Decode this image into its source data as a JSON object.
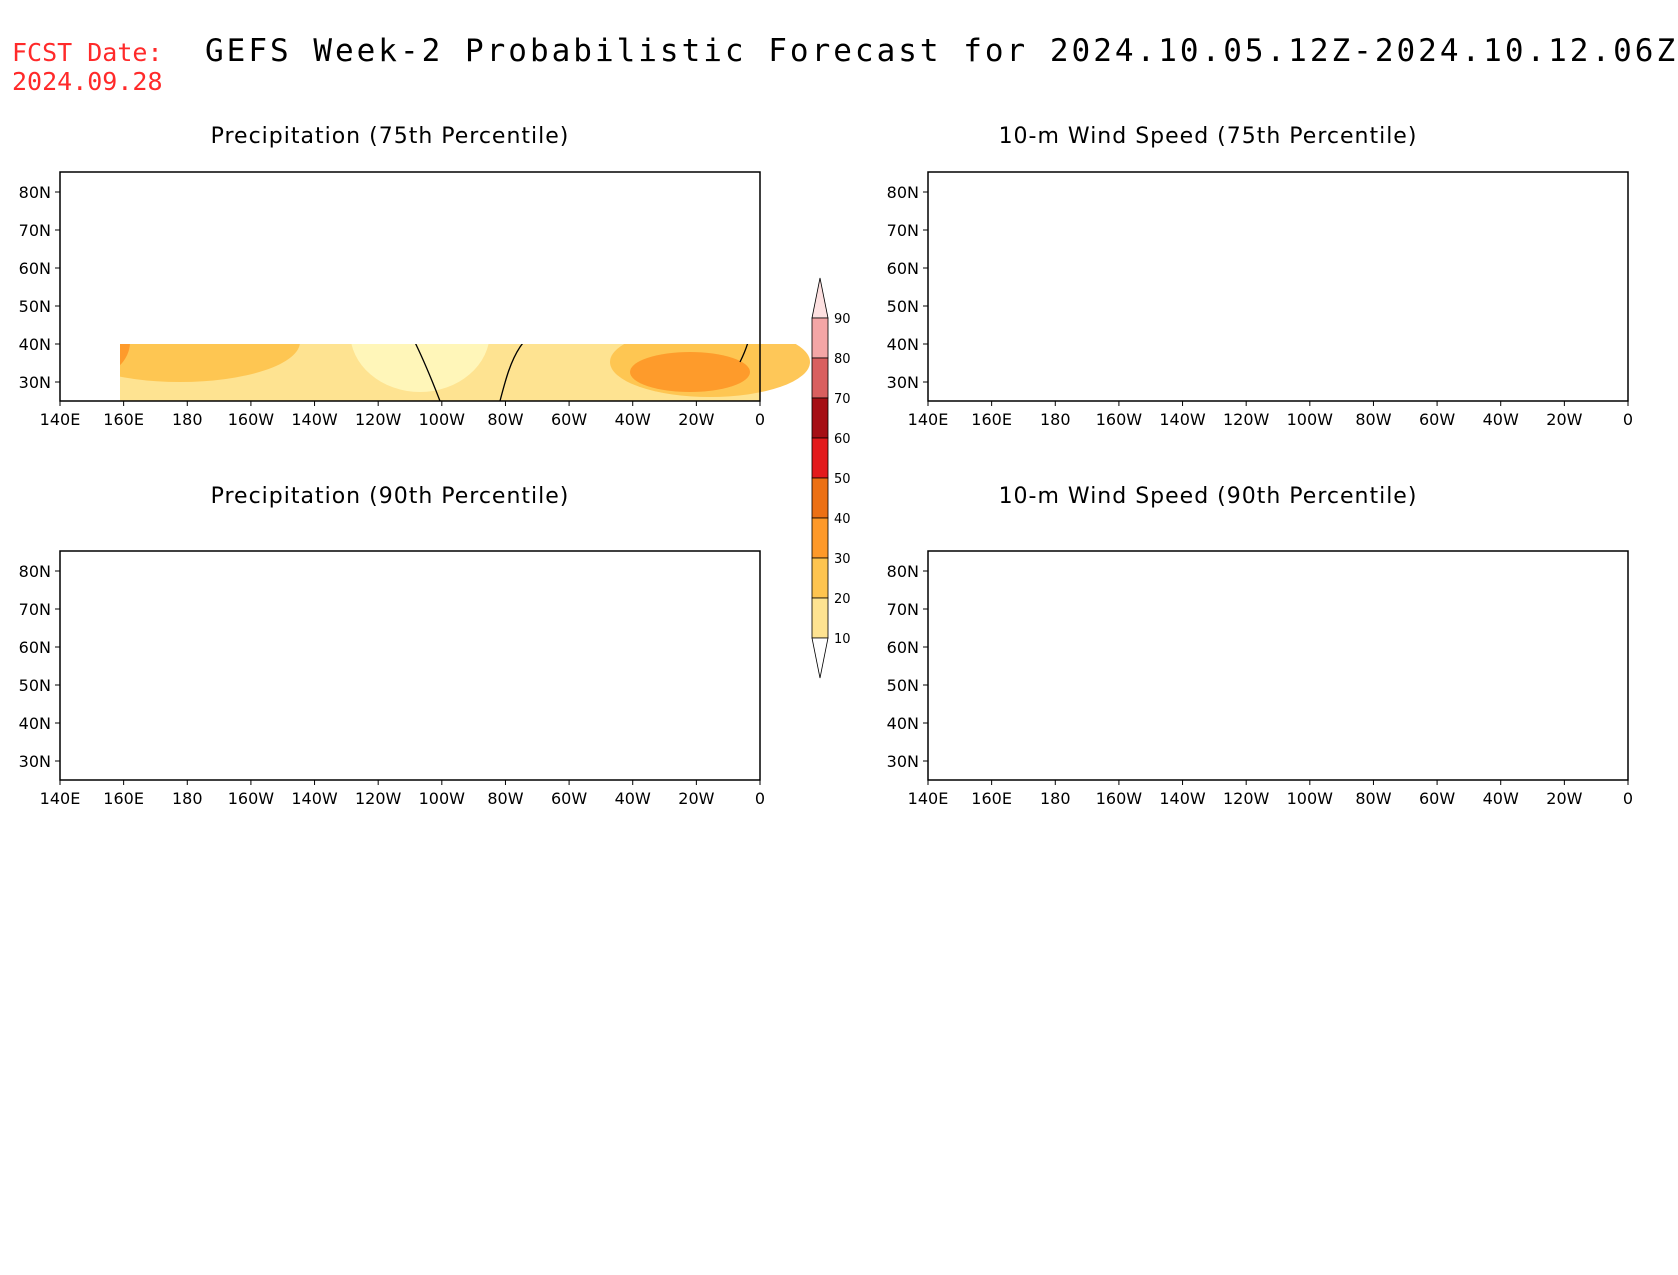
{
  "header": {
    "fcst_label": "FCST Date:",
    "fcst_date": "2024.09.28",
    "title": "GEFS Week-2 Probabilistic Forecast for 2024.10.05.12Z-2024.10.12.06Z"
  },
  "panels": [
    {
      "title": "Precipitation (75th Percentile)"
    },
    {
      "title": "10-m Wind Speed (75th Percentile)"
    },
    {
      "title": "Precipitation (90th Percentile)"
    },
    {
      "title": "10-m Wind Speed (90th Percentile)"
    }
  ],
  "lat_labels": [
    "80N",
    "70N",
    "60N",
    "50N",
    "40N",
    "30N"
  ],
  "lon_labels": [
    "140E",
    "160E",
    "180",
    "160W",
    "140W",
    "120W",
    "100W",
    "80W",
    "60W",
    "40W",
    "20W",
    "0"
  ],
  "colorbar": {
    "levels": [
      "10",
      "20",
      "30",
      "40",
      "50",
      "60",
      "70",
      "80",
      "90"
    ],
    "colors": [
      "#fff7bc",
      "#fee391",
      "#fec44f",
      "#fe9929",
      "#ec7014",
      "#e31a1c",
      "#a50f15",
      "#d95f5f",
      "#f4a6a6",
      "#fde0e0"
    ]
  }
}
